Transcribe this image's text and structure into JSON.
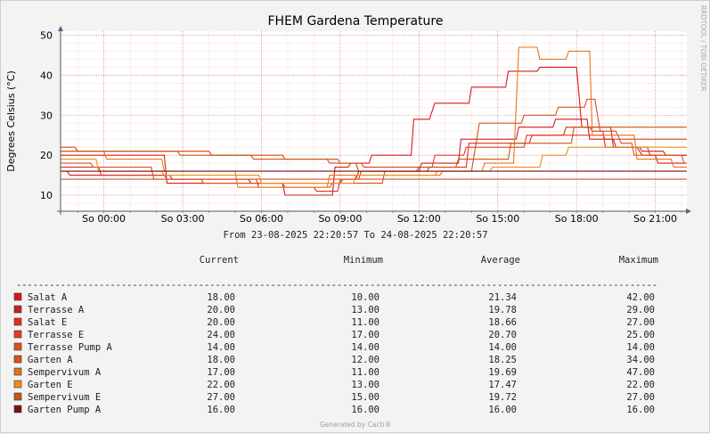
{
  "chart_data": {
    "type": "line",
    "title": "FHEM Gardena Temperature",
    "ylabel": "Degrees Celsius (°C)",
    "xlabel": "",
    "ylim": [
      6,
      51
    ],
    "yticks": [
      10,
      20,
      30,
      40,
      50
    ],
    "time_axis": {
      "start_hour": 22.35,
      "end_hour": 46.2
    },
    "x_tick_hours": [
      24,
      27,
      30,
      33,
      36,
      39,
      42,
      45
    ],
    "x_tick_labels": [
      "So 00:00",
      "So 03:00",
      "So 06:00",
      "So 09:00",
      "So 12:00",
      "So 15:00",
      "So 18:00",
      "So 21:00"
    ],
    "period_text": "From 23-08-2025 22:20:57 To 24-08-2025 22:20:57",
    "watermark": "RRDTOOL / TOBI OETIKER",
    "footer": "Generated by Cacti®",
    "legend": {
      "headers": [
        "Current",
        "Minimum",
        "Average",
        "Maximum"
      ],
      "separator": "--------------------------------------------------------------------------------------------------------------------"
    },
    "series": [
      {
        "name": "Salat A",
        "color": "#d91a1a",
        "current": "18.00",
        "minimum": "10.00",
        "average": "21.34",
        "maximum": "42.00",
        "points": [
          [
            22.35,
            20
          ],
          [
            23.7,
            20
          ],
          [
            23.8,
            20
          ],
          [
            24.0,
            20
          ],
          [
            24.1,
            20
          ],
          [
            26.3,
            20
          ],
          [
            26.4,
            13
          ],
          [
            30.8,
            13
          ],
          [
            30.9,
            10
          ],
          [
            32.7,
            10
          ],
          [
            32.8,
            17
          ],
          [
            33.3,
            17
          ],
          [
            33.4,
            18
          ],
          [
            34.1,
            18
          ],
          [
            34.2,
            20
          ],
          [
            35.7,
            20
          ],
          [
            35.8,
            29
          ],
          [
            36.4,
            29
          ],
          [
            36.6,
            33
          ],
          [
            37.9,
            33
          ],
          [
            38.0,
            37
          ],
          [
            39.3,
            37
          ],
          [
            39.4,
            41
          ],
          [
            40.5,
            41
          ],
          [
            40.6,
            42
          ],
          [
            42.0,
            42
          ],
          [
            42.2,
            27
          ],
          [
            43.3,
            27
          ],
          [
            43.4,
            22
          ],
          [
            44.3,
            22
          ],
          [
            44.5,
            20
          ],
          [
            45.0,
            20
          ],
          [
            45.1,
            18
          ],
          [
            46.2,
            18
          ]
        ]
      },
      {
        "name": "Terrasse A",
        "color": "#c9211b",
        "current": "20.00",
        "minimum": "13.00",
        "average": "19.78",
        "maximum": "29.00",
        "points": [
          [
            22.35,
            16
          ],
          [
            22.6,
            16
          ],
          [
            22.7,
            15
          ],
          [
            24.0,
            15
          ],
          [
            24.1,
            15
          ],
          [
            26.5,
            15
          ],
          [
            26.6,
            14
          ],
          [
            29.5,
            14
          ],
          [
            29.6,
            13
          ],
          [
            33.0,
            13
          ],
          [
            33.1,
            14
          ],
          [
            33.6,
            14
          ],
          [
            33.7,
            16
          ],
          [
            36.0,
            16
          ],
          [
            36.1,
            18
          ],
          [
            37.5,
            18
          ],
          [
            37.6,
            24
          ],
          [
            39.7,
            24
          ],
          [
            39.8,
            27
          ],
          [
            41.1,
            27
          ],
          [
            41.2,
            29
          ],
          [
            42.4,
            29
          ],
          [
            42.5,
            24
          ],
          [
            43.4,
            24
          ],
          [
            43.5,
            22
          ],
          [
            44.4,
            22
          ],
          [
            44.5,
            21
          ],
          [
            45.3,
            21
          ],
          [
            45.4,
            20
          ],
          [
            46.2,
            20
          ]
        ]
      },
      {
        "name": "Salat E",
        "color": "#e12e1f",
        "current": "20.00",
        "minimum": "11.00",
        "average": "18.66",
        "maximum": "27.00",
        "points": [
          [
            22.35,
            17
          ],
          [
            23.8,
            17
          ],
          [
            23.9,
            15
          ],
          [
            26.3,
            15
          ],
          [
            26.4,
            14
          ],
          [
            29.8,
            14
          ],
          [
            29.9,
            12
          ],
          [
            32.0,
            12
          ],
          [
            32.1,
            11
          ],
          [
            32.9,
            11
          ],
          [
            33.0,
            14
          ],
          [
            33.7,
            14
          ],
          [
            33.8,
            16
          ],
          [
            36.3,
            16
          ],
          [
            36.4,
            17
          ],
          [
            37.8,
            17
          ],
          [
            37.9,
            23
          ],
          [
            40.2,
            23
          ],
          [
            40.3,
            25
          ],
          [
            41.5,
            25
          ],
          [
            41.6,
            27
          ],
          [
            42.5,
            27
          ],
          [
            42.6,
            26
          ],
          [
            43.0,
            26
          ],
          [
            43.1,
            22
          ],
          [
            44.7,
            22
          ],
          [
            44.8,
            20
          ],
          [
            46.2,
            20
          ]
        ]
      },
      {
        "name": "Terrasse E",
        "color": "#e23d1b",
        "current": "24.00",
        "minimum": "17.00",
        "average": "20.70",
        "maximum": "25.00",
        "points": [
          [
            22.35,
            22
          ],
          [
            22.9,
            22
          ],
          [
            23.0,
            21
          ],
          [
            26.0,
            21
          ],
          [
            26.1,
            21
          ],
          [
            28.0,
            21
          ],
          [
            28.1,
            20
          ],
          [
            30.8,
            20
          ],
          [
            30.9,
            19
          ],
          [
            32.5,
            19
          ],
          [
            32.6,
            18
          ],
          [
            33.8,
            18
          ],
          [
            33.9,
            17
          ],
          [
            36.5,
            17
          ],
          [
            36.6,
            20
          ],
          [
            37.7,
            20
          ],
          [
            37.8,
            22
          ],
          [
            40.0,
            22
          ],
          [
            40.1,
            25
          ],
          [
            43.0,
            25
          ],
          [
            43.1,
            24
          ],
          [
            45.5,
            24
          ],
          [
            45.6,
            24
          ],
          [
            46.2,
            24
          ]
        ]
      },
      {
        "name": "Terrasse Pump A",
        "color": "#e24f1b",
        "current": "14.00",
        "minimum": "14.00",
        "average": "14.00",
        "maximum": "14.00",
        "points": [
          [
            22.35,
            14
          ],
          [
            46.2,
            14
          ]
        ]
      },
      {
        "name": "Garten A",
        "color": "#d8501e",
        "current": "18.00",
        "minimum": "12.00",
        "average": "18.25",
        "maximum": "34.00",
        "points": [
          [
            22.35,
            18
          ],
          [
            23.5,
            18
          ],
          [
            23.6,
            17
          ],
          [
            25.8,
            17
          ],
          [
            25.9,
            14
          ],
          [
            27.7,
            14
          ],
          [
            27.8,
            13
          ],
          [
            30.8,
            13
          ],
          [
            30.9,
            12
          ],
          [
            32.6,
            12
          ],
          [
            32.7,
            13
          ],
          [
            34.6,
            13
          ],
          [
            34.7,
            16
          ],
          [
            37.4,
            16
          ],
          [
            37.5,
            16
          ],
          [
            38.0,
            16
          ],
          [
            38.3,
            28
          ],
          [
            39.9,
            28
          ],
          [
            40.0,
            30
          ],
          [
            41.2,
            30
          ],
          [
            41.3,
            32
          ],
          [
            42.3,
            32
          ],
          [
            42.4,
            34
          ],
          [
            42.7,
            34
          ],
          [
            42.9,
            26
          ],
          [
            43.5,
            26
          ],
          [
            43.7,
            23
          ],
          [
            44.1,
            23
          ],
          [
            44.2,
            20
          ],
          [
            46.0,
            20
          ],
          [
            46.1,
            18
          ],
          [
            46.2,
            18
          ]
        ]
      },
      {
        "name": "Sempervivum A",
        "color": "#e8741c",
        "current": "17.00",
        "minimum": "11.00",
        "average": "19.69",
        "maximum": "47.00",
        "points": [
          [
            22.35,
            21
          ],
          [
            24.0,
            21
          ],
          [
            24.1,
            19
          ],
          [
            26.2,
            19
          ],
          [
            26.3,
            16
          ],
          [
            29.0,
            16
          ],
          [
            29.1,
            12
          ],
          [
            32.5,
            12
          ],
          [
            32.6,
            15
          ],
          [
            36.8,
            15
          ],
          [
            36.9,
            16
          ],
          [
            38.4,
            16
          ],
          [
            38.5,
            18
          ],
          [
            39.6,
            18
          ],
          [
            39.8,
            47
          ],
          [
            40.5,
            47
          ],
          [
            40.6,
            44
          ],
          [
            41.6,
            44
          ],
          [
            41.7,
            46
          ],
          [
            42.5,
            46
          ],
          [
            42.6,
            25
          ],
          [
            44.2,
            25
          ],
          [
            44.3,
            19
          ],
          [
            45.6,
            19
          ],
          [
            45.7,
            17
          ],
          [
            46.2,
            17
          ]
        ]
      },
      {
        "name": "Garten E",
        "color": "#ec8d1f",
        "current": "22.00",
        "minimum": "13.00",
        "average": "17.47",
        "maximum": "22.00",
        "points": [
          [
            22.35,
            19
          ],
          [
            23.7,
            19
          ],
          [
            23.8,
            16
          ],
          [
            26.2,
            16
          ],
          [
            26.3,
            15
          ],
          [
            29.9,
            15
          ],
          [
            30.0,
            13
          ],
          [
            33.5,
            13
          ],
          [
            33.6,
            15
          ],
          [
            36.6,
            15
          ],
          [
            36.7,
            16
          ],
          [
            38.7,
            16
          ],
          [
            38.8,
            17
          ],
          [
            40.6,
            17
          ],
          [
            40.7,
            20
          ],
          [
            41.6,
            20
          ],
          [
            41.7,
            22
          ],
          [
            46.2,
            22
          ]
        ]
      },
      {
        "name": "Sempervivum E",
        "color": "#c75713",
        "current": "27.00",
        "minimum": "15.00",
        "average": "19.72",
        "maximum": "27.00",
        "points": [
          [
            22.35,
            21
          ],
          [
            26.8,
            21
          ],
          [
            26.9,
            20
          ],
          [
            29.6,
            20
          ],
          [
            29.7,
            19
          ],
          [
            32.9,
            19
          ],
          [
            33.0,
            18
          ],
          [
            33.6,
            18
          ],
          [
            33.7,
            16
          ],
          [
            35.9,
            16
          ],
          [
            36.0,
            17
          ],
          [
            37.4,
            17
          ],
          [
            37.5,
            19
          ],
          [
            39.4,
            19
          ],
          [
            39.5,
            23
          ],
          [
            41.8,
            23
          ],
          [
            41.9,
            27
          ],
          [
            46.2,
            27
          ]
        ]
      },
      {
        "name": "Garten Pump A",
        "color": "#7a0f10",
        "current": "16.00",
        "minimum": "16.00",
        "average": "16.00",
        "maximum": "16.00",
        "points": [
          [
            22.35,
            16
          ],
          [
            46.2,
            16
          ]
        ]
      }
    ]
  }
}
